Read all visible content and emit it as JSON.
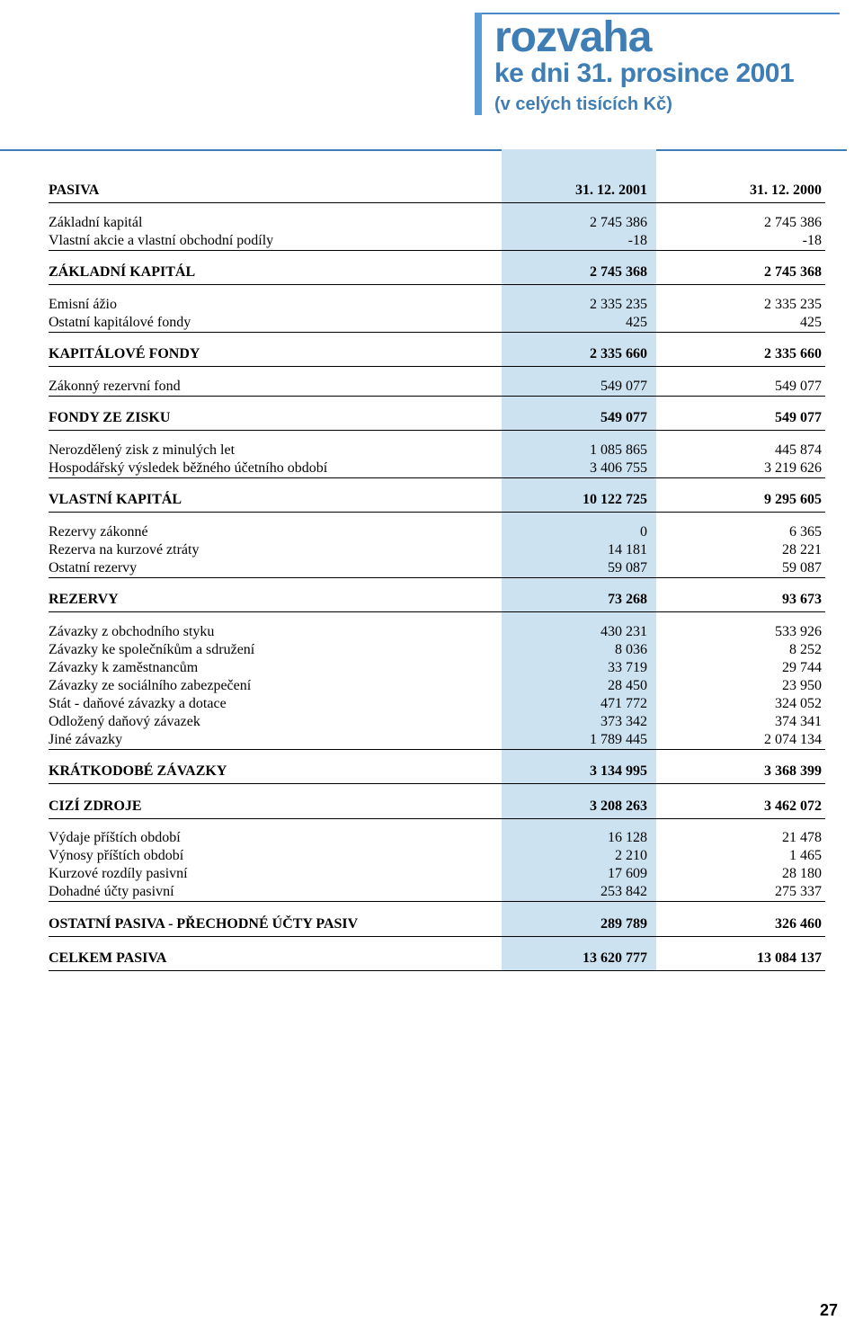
{
  "header": {
    "title_bold": "rozvaha",
    "subtitle": "ke dni 31. prosince 2001",
    "note": "(v celých tisících Kč)",
    "bar_color": "#5b9bd5",
    "text_color": "#3f7db5"
  },
  "band_color": "#cde2f0",
  "columns": {
    "heading": "PASIVA",
    "c1": "31. 12. 2001",
    "c2": "31. 12. 2000"
  },
  "rows": [
    {
      "label": "Základní kapitál",
      "c1": "2 745 386",
      "c2": "2 745 386"
    },
    {
      "label": "Vlastní akcie a vlastní obchodní podíly",
      "c1": "-18",
      "c2": "-18"
    }
  ],
  "s1": {
    "label": "ZÁKLADNÍ KAPITÁL",
    "c1": "2 745 368",
    "c2": "2 745 368"
  },
  "rows2": [
    {
      "label": "Emisní ážio",
      "c1": "2 335 235",
      "c2": "2 335 235"
    },
    {
      "label": "Ostatní kapitálové fondy",
      "c1": "425",
      "c2": "425"
    }
  ],
  "s2": {
    "label": "KAPITÁLOVÉ FONDY",
    "c1": "2 335 660",
    "c2": "2 335 660"
  },
  "rows3": [
    {
      "label": "Zákonný rezervní fond",
      "c1": "549 077",
      "c2": "549 077"
    }
  ],
  "s3": {
    "label": "FONDY ZE ZISKU",
    "c1": "549 077",
    "c2": "549 077"
  },
  "rows4": [
    {
      "label": "Nerozdělený zisk z minulých let",
      "c1": "1 085 865",
      "c2": "445 874"
    },
    {
      "label": "Hospodářský výsledek běžného účetního období",
      "c1": "3 406 755",
      "c2": "3 219 626"
    }
  ],
  "s4": {
    "label": "VLASTNÍ KAPITÁL",
    "c1": "10 122 725",
    "c2": "9 295 605"
  },
  "rows5": [
    {
      "label": "Rezervy zákonné",
      "c1": "0",
      "c2": "6 365"
    },
    {
      "label": "Rezerva na kurzové ztráty",
      "c1": "14 181",
      "c2": "28 221"
    },
    {
      "label": "Ostatní rezervy",
      "c1": "59 087",
      "c2": "59 087"
    }
  ],
  "s5": {
    "label": "REZERVY",
    "c1": "73 268",
    "c2": "93 673"
  },
  "rows6": [
    {
      "label": "Závazky z obchodního styku",
      "c1": "430 231",
      "c2": "533 926"
    },
    {
      "label": "Závazky ke společníkům a sdružení",
      "c1": "8 036",
      "c2": "8 252"
    },
    {
      "label": "Závazky k zaměstnancům",
      "c1": "33 719",
      "c2": "29 744"
    },
    {
      "label": "Závazky ze sociálního zabezpečení",
      "c1": "28 450",
      "c2": "23 950"
    },
    {
      "label": "Stát - daňové závazky a dotace",
      "c1": "471 772",
      "c2": "324 052"
    },
    {
      "label": "Odložený daňový závazek",
      "c1": "373 342",
      "c2": "374 341"
    },
    {
      "label": "Jiné závazky",
      "c1": "1 789 445",
      "c2": "2 074 134"
    }
  ],
  "s6": {
    "label": "KRÁTKODOBÉ ZÁVAZKY",
    "c1": "3 134 995",
    "c2": "3 368 399"
  },
  "s7": {
    "label": "CIZÍ ZDROJE",
    "c1": "3 208 263",
    "c2": "3 462 072"
  },
  "rows7": [
    {
      "label": "Výdaje příštích období",
      "c1": "16 128",
      "c2": "21 478"
    },
    {
      "label": "Výnosy příštích období",
      "c1": "2 210",
      "c2": "1 465"
    },
    {
      "label": "Kurzové rozdíly pasivní",
      "c1": "17 609",
      "c2": "28 180"
    },
    {
      "label": "Dohadné účty pasivní",
      "c1": "253 842",
      "c2": "275 337"
    }
  ],
  "s8": {
    "label": "OSTATNÍ PASIVA - PŘECHODNÉ ÚČTY PASIV",
    "c1": "289 789",
    "c2": "326 460"
  },
  "s9": {
    "label": "CELKEM PASIVA",
    "c1": "13 620 777",
    "c2": "13 084 137"
  },
  "page_number": "27"
}
